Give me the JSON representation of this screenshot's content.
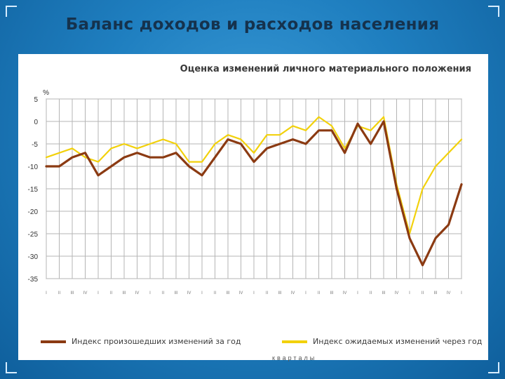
{
  "slide": {
    "title": "Баланс доходов и расходов населения"
  },
  "chart_data": {
    "type": "line",
    "title": "Оценка изменений личного материального положения",
    "ylabel": "%",
    "xlabel": "кварталы",
    "ylim": [
      -35,
      5
    ],
    "yticks": [
      5,
      0,
      -5,
      -10,
      -15,
      -20,
      -25,
      -30,
      -35
    ],
    "grid": true,
    "legend_position": "bottom",
    "categories": [
      "I",
      "II",
      "III",
      "IV",
      "I",
      "II",
      "III",
      "IV",
      "I",
      "II",
      "III",
      "IV",
      "I",
      "II",
      "III",
      "IV",
      "I",
      "II",
      "III",
      "IV",
      "I",
      "II",
      "III",
      "IV",
      "I",
      "II",
      "III",
      "IV",
      "I",
      "II",
      "III",
      "IV",
      "I"
    ],
    "series": [
      {
        "name": "Индекс произошедших изменений за год",
        "color": "#8b3a12",
        "values": [
          -10,
          -10,
          -8,
          -7,
          -12,
          -10,
          -8,
          -7,
          -8,
          -8,
          -7,
          -10,
          -12,
          -8,
          -4,
          -5,
          -9,
          -6,
          -5,
          -4,
          -5,
          -2,
          -2,
          -7,
          -0.5,
          -5,
          0,
          -15,
          -26,
          -32,
          -26,
          -23,
          -14
        ]
      },
      {
        "name": "Индекс ожидаемых изменений через год",
        "color": "#f2d10c",
        "values": [
          -8,
          -7,
          -6,
          -8,
          -9,
          -6,
          -5,
          -6,
          -5,
          -4,
          -5,
          -9,
          -9,
          -5,
          -3,
          -4,
          -7,
          -3,
          -3,
          -1,
          -2,
          1,
          -1,
          -6,
          -1,
          -2,
          1,
          -14,
          -25,
          -15,
          -10,
          -7,
          -4
        ]
      }
    ]
  }
}
